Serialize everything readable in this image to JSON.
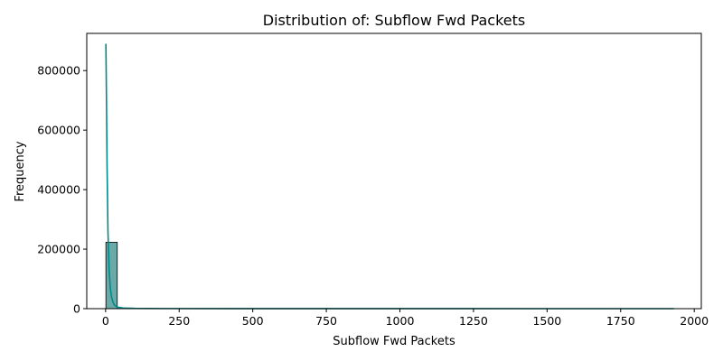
{
  "chart_data": {
    "type": "bar",
    "title": "Distribution of: Subflow Fwd Packets",
    "xlabel": "Subflow Fwd Packets",
    "ylabel": "Frequency",
    "xlim": [
      -64,
      2024
    ],
    "ylim": [
      0,
      925000
    ],
    "xticks": [
      0,
      250,
      500,
      750,
      1000,
      1250,
      1500,
      1750,
      2000
    ],
    "yticks": [
      0,
      200000,
      400000,
      600000,
      800000
    ],
    "grid": false,
    "legend": "none",
    "bins": [
      {
        "x0": 1,
        "x1": 39.6,
        "count": 223000
      },
      {
        "x0": 39.6,
        "x1": 78.2,
        "count": 600
      }
    ],
    "kde": {
      "x": [
        1,
        3,
        5,
        8,
        12,
        16,
        20,
        25,
        30,
        40,
        60,
        100,
        200,
        500,
        1000,
        1500,
        1931
      ],
      "y": [
        890000,
        700000,
        480000,
        260000,
        130000,
        70000,
        40000,
        22000,
        12000,
        5000,
        2000,
        900,
        400,
        150,
        60,
        30,
        10
      ]
    },
    "colors": {
      "bar_fill": "#6aa9a7",
      "bar_edge": "#000000",
      "kde_line": "#008b8b"
    }
  }
}
